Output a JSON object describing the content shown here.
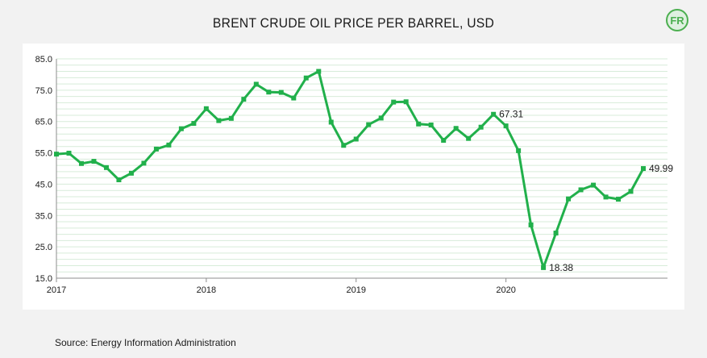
{
  "title": "BRENT CRUDE OIL PRICE PER BARREL, USD",
  "source": "Source: Energy Information Administration",
  "logo": {
    "icon": "fr-logo-icon",
    "text": "FR",
    "color": "#4caf50"
  },
  "chart_data": {
    "type": "line",
    "title": "BRENT CRUDE OIL PRICE PER BARREL, USD",
    "xlabel": "",
    "ylabel": "",
    "ylim": [
      15.0,
      85.0
    ],
    "yticks": [
      "85.0",
      "75.0",
      "65.0",
      "55.0",
      "45.0",
      "35.0",
      "25.0",
      "15.0"
    ],
    "xticks": [
      {
        "label": "2017",
        "x": "2017-01"
      },
      {
        "label": "2018",
        "x": "2018-01"
      },
      {
        "label": "2019",
        "x": "2019-01"
      },
      {
        "label": "2020",
        "x": "2020-01"
      }
    ],
    "grid": true,
    "line_color": "#21b04b",
    "x": [
      "2017-01",
      "2017-02",
      "2017-03",
      "2017-04",
      "2017-05",
      "2017-06",
      "2017-07",
      "2017-08",
      "2017-09",
      "2017-10",
      "2017-11",
      "2017-12",
      "2018-01",
      "2018-02",
      "2018-03",
      "2018-04",
      "2018-05",
      "2018-06",
      "2018-07",
      "2018-08",
      "2018-09",
      "2018-10",
      "2018-11",
      "2018-12",
      "2019-01",
      "2019-02",
      "2019-03",
      "2019-04",
      "2019-05",
      "2019-06",
      "2019-07",
      "2019-08",
      "2019-09",
      "2019-10",
      "2019-11",
      "2019-12",
      "2020-01",
      "2020-02",
      "2020-03",
      "2020-04",
      "2020-05",
      "2020-06",
      "2020-07",
      "2020-08",
      "2020-09",
      "2020-10",
      "2020-11",
      "2020-12"
    ],
    "values": [
      54.6,
      54.9,
      51.6,
      52.3,
      50.3,
      46.4,
      48.5,
      51.7,
      56.2,
      57.5,
      62.7,
      64.4,
      69.1,
      65.3,
      66.0,
      72.1,
      76.9,
      74.4,
      74.3,
      72.5,
      78.9,
      81.0,
      64.8,
      57.4,
      59.4,
      64.0,
      66.1,
      71.2,
      71.3,
      64.2,
      63.9,
      59.0,
      62.8,
      59.6,
      63.2,
      67.31,
      63.6,
      55.7,
      32.0,
      18.38,
      29.4,
      40.3,
      43.2,
      44.7,
      40.9,
      40.2,
      42.7,
      49.99
    ],
    "annotations": [
      {
        "x": "2019-12",
        "text": "67.31"
      },
      {
        "x": "2020-04",
        "text": "18.38"
      },
      {
        "x": "2020-12",
        "text": "49.99"
      }
    ]
  }
}
